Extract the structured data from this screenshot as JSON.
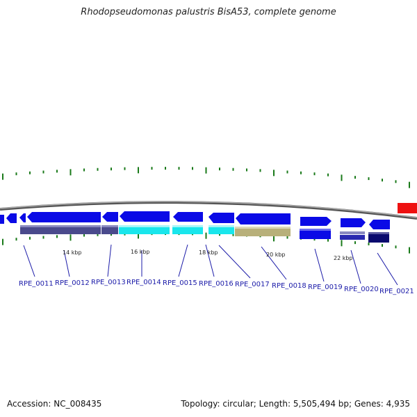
{
  "title": "Rhodopseudomonas palustris BisA53, complete genome",
  "footer": {
    "accession": "Accession: NC_008435",
    "topology": "Topology: circular; Length: 5,505,494 bp; Genes: 4,935"
  },
  "colors": {
    "gene_blue": "#0a0ae6",
    "purple": "#4a4a8c",
    "cyan": "#19e6ec",
    "olive": "#b8b07a",
    "navy": "#0a0a6e",
    "red": "#ee1111",
    "tick_green": "#1a7a1a",
    "backbone": "#888888"
  },
  "genes": [
    {
      "label": "RPE_0011"
    },
    {
      "label": "RPE_0012"
    },
    {
      "label": "RPE_0013"
    },
    {
      "label": "RPE_0014"
    },
    {
      "label": "RPE_0015"
    },
    {
      "label": "RPE_0016"
    },
    {
      "label": "RPE_0017"
    },
    {
      "label": "RPE_0018"
    },
    {
      "label": "RPE_0019"
    },
    {
      "label": "RPE_0020"
    },
    {
      "label": "RPE_0021"
    }
  ],
  "kbp_labels": [
    "14 kbp",
    "16 kbp",
    "18 kbp",
    "20 kbp",
    "22 kbp"
  ]
}
